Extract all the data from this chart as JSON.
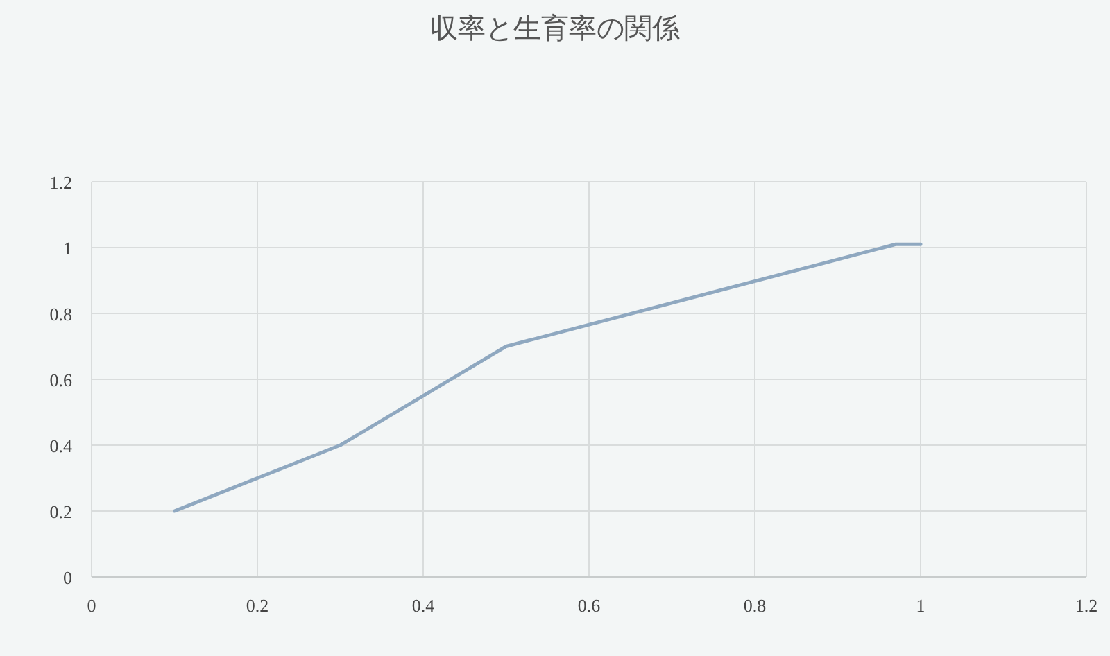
{
  "chart_data": {
    "type": "line",
    "title": "収率と生育率の関係",
    "x": [
      0.1,
      0.3,
      0.5,
      0.97,
      1.0
    ],
    "series": [
      {
        "color": "#8fa8c0",
        "values": [
          0.2,
          0.4,
          0.7,
          1.01,
          1.01
        ]
      }
    ],
    "xlim": [
      0,
      1.2
    ],
    "xticks": [
      0,
      0.2,
      0.4,
      0.6,
      0.8,
      1,
      1.2
    ],
    "ylim": [
      0,
      1.2
    ],
    "yticks": [
      0,
      0.2,
      0.4,
      0.6,
      0.8,
      1,
      1.2
    ],
    "grid": true,
    "marker": "none",
    "line_style": "solid"
  }
}
